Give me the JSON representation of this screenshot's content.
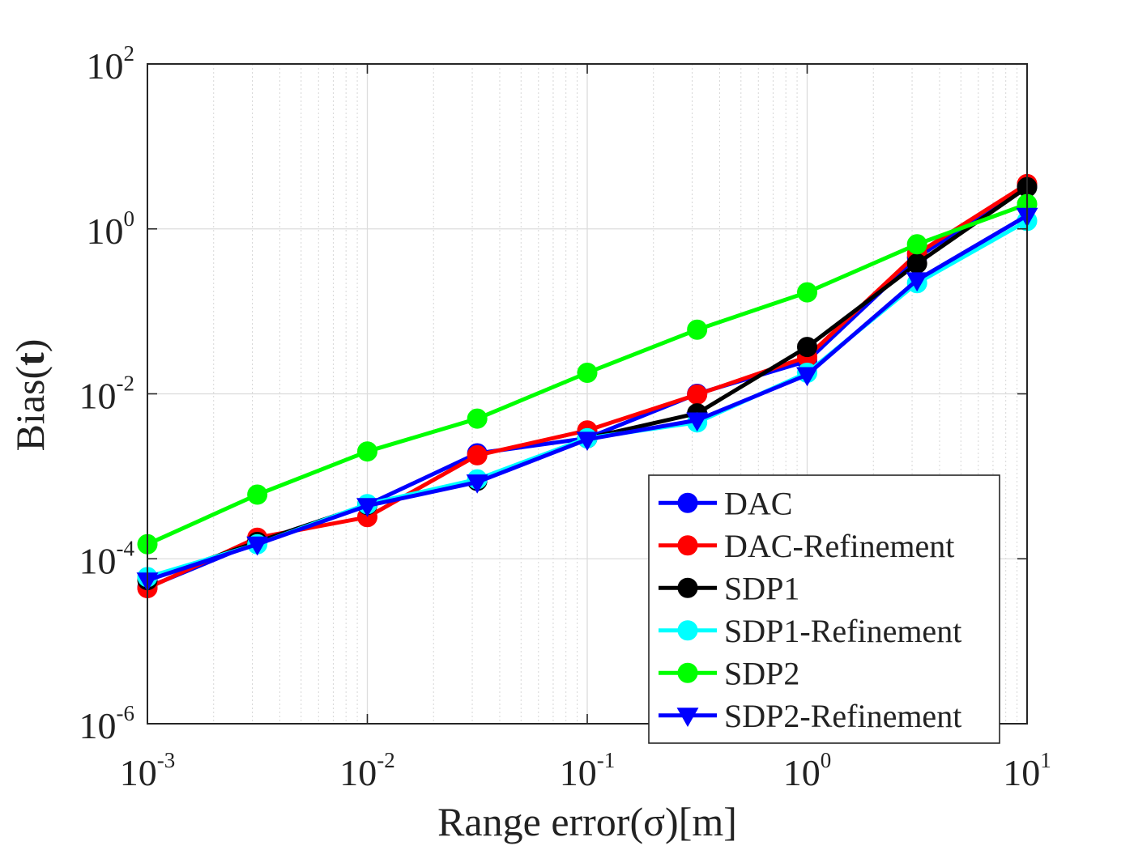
{
  "chart_data": {
    "type": "line",
    "xscale": "log",
    "yscale": "log",
    "xlabel": "Range error(σ)[m]",
    "ylabel": "Bias(t)",
    "ylabel_parts": {
      "prefix": "Bias(",
      "bold": "t",
      "suffix": ")"
    },
    "xlim": [
      0.001,
      10
    ],
    "ylim": [
      1e-06,
      100
    ],
    "x_ticks": [
      {
        "base": "10",
        "exp": "-3"
      },
      {
        "base": "10",
        "exp": "-2"
      },
      {
        "base": "10",
        "exp": "-1"
      },
      {
        "base": "10",
        "exp": "0"
      },
      {
        "base": "10",
        "exp": "1"
      }
    ],
    "y_ticks": [
      {
        "base": "10",
        "exp": "-6"
      },
      {
        "base": "10",
        "exp": "-4"
      },
      {
        "base": "10",
        "exp": "-2"
      },
      {
        "base": "10",
        "exp": "0"
      },
      {
        "base": "10",
        "exp": "2"
      }
    ],
    "grid": true,
    "legend_position": "bottom-right",
    "x": [
      0.001,
      0.00316,
      0.01,
      0.0316,
      0.1,
      0.316,
      1,
      3.16,
      10
    ],
    "series": [
      {
        "name": "DAC",
        "color": "#0000ff",
        "marker": "circle",
        "values": [
          4.5e-05,
          0.00016,
          0.00045,
          0.0019,
          0.0029,
          0.01,
          0.025,
          0.45,
          3.3
        ]
      },
      {
        "name": "DAC-Refinement",
        "color": "#ff0000",
        "marker": "circle",
        "values": [
          4.4e-05,
          0.00018,
          0.00032,
          0.0018,
          0.0036,
          0.0098,
          0.028,
          0.5,
          3.5
        ]
      },
      {
        "name": "SDP1",
        "color": "#000000",
        "marker": "circle",
        "values": [
          5.5e-05,
          0.00016,
          0.00045,
          0.00088,
          0.0029,
          0.0058,
          0.037,
          0.38,
          3.2
        ]
      },
      {
        "name": "SDP1-Refinement",
        "color": "#00ffff",
        "marker": "circle",
        "values": [
          6e-05,
          0.00015,
          0.00046,
          0.00092,
          0.0029,
          0.0045,
          0.018,
          0.22,
          1.25
        ]
      },
      {
        "name": "SDP2",
        "color": "#00ff00",
        "marker": "circle",
        "values": [
          0.00015,
          0.0006,
          0.002,
          0.005,
          0.018,
          0.06,
          0.17,
          0.65,
          2.0
        ]
      },
      {
        "name": "SDP2-Refinement",
        "color": "#0000ff",
        "marker": "triangle-down",
        "values": [
          5.5e-05,
          0.00015,
          0.00044,
          0.00085,
          0.0028,
          0.0048,
          0.017,
          0.24,
          1.45
        ]
      }
    ]
  }
}
